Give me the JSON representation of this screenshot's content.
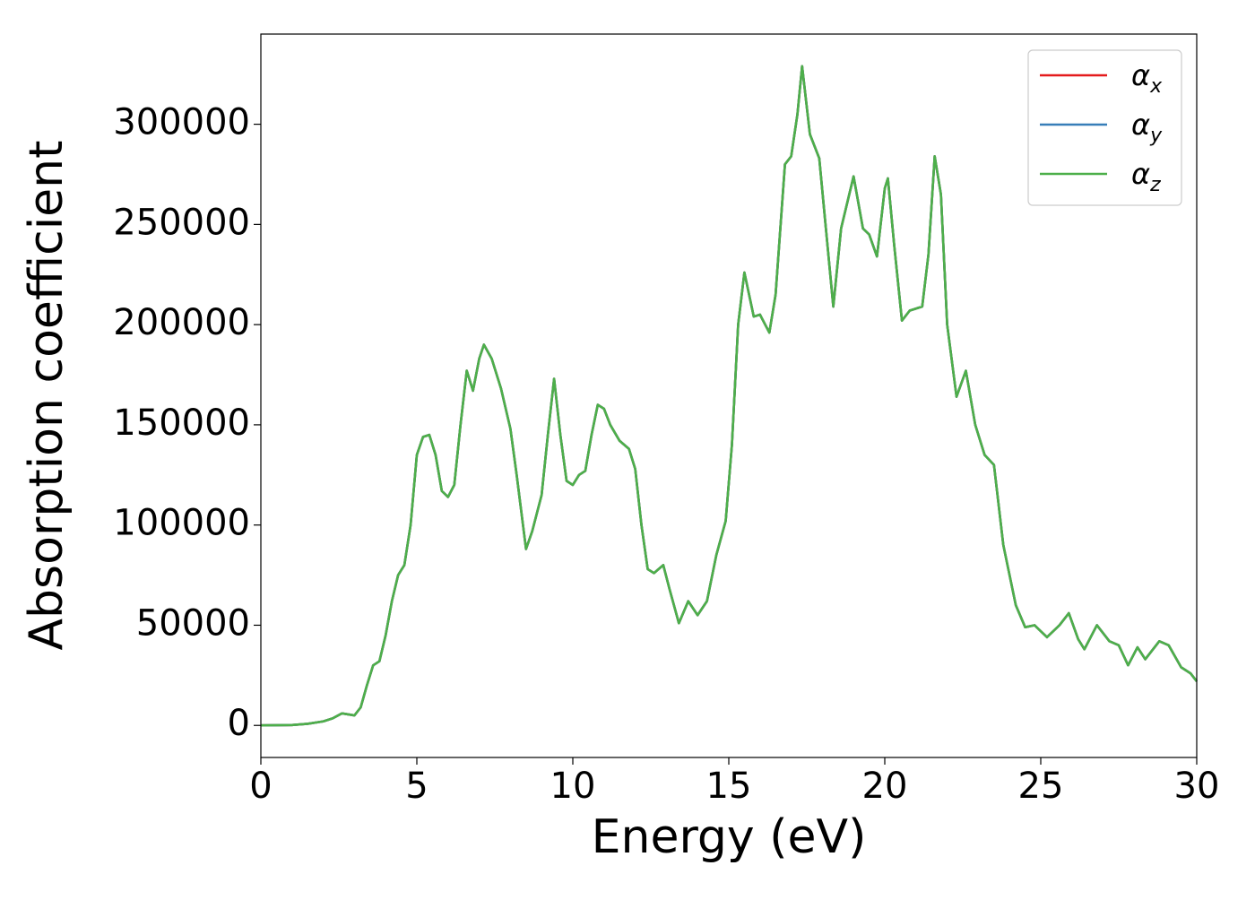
{
  "chart_data": {
    "type": "line",
    "xlabel": "Energy (eV)",
    "ylabel": "Absorption coefficient",
    "xlim": [
      0,
      30
    ],
    "xticks": [
      0,
      5,
      10,
      15,
      20,
      25,
      30
    ],
    "ylim": [
      -16000,
      345000
    ],
    "yticks": [
      0,
      50000,
      100000,
      150000,
      200000,
      250000,
      300000
    ],
    "legend": "upper right",
    "x": [
      0,
      1,
      1.5,
      2,
      2.3,
      2.6,
      2.8,
      3.0,
      3.2,
      3.4,
      3.6,
      3.8,
      4.0,
      4.2,
      4.4,
      4.6,
      4.8,
      5.0,
      5.2,
      5.4,
      5.6,
      5.8,
      6.0,
      6.2,
      6.4,
      6.6,
      6.8,
      7.0,
      7.15,
      7.4,
      7.7,
      8.0,
      8.2,
      8.5,
      8.7,
      9.0,
      9.2,
      9.4,
      9.6,
      9.8,
      10.0,
      10.2,
      10.4,
      10.6,
      10.8,
      11.0,
      11.2,
      11.5,
      11.8,
      12.0,
      12.2,
      12.4,
      12.6,
      12.9,
      13.1,
      13.4,
      13.7,
      14.0,
      14.3,
      14.6,
      14.9,
      15.1,
      15.3,
      15.5,
      15.8,
      16.0,
      16.3,
      16.5,
      16.8,
      17.0,
      17.2,
      17.35,
      17.6,
      17.9,
      18.1,
      18.35,
      18.6,
      19.0,
      19.3,
      19.5,
      19.75,
      20.0,
      20.1,
      20.3,
      20.55,
      20.8,
      21.2,
      21.4,
      21.6,
      21.8,
      22.0,
      22.3,
      22.6,
      22.9,
      23.2,
      23.5,
      23.8,
      24.2,
      24.5,
      24.8,
      25.2,
      25.6,
      25.9,
      26.2,
      26.4,
      26.8,
      27.2,
      27.5,
      27.8,
      28.1,
      28.35,
      28.8,
      29.1,
      29.5,
      29.8,
      30
    ],
    "series": [
      {
        "name": "αx",
        "color": "#e41a1c",
        "values": [
          0,
          200,
          800,
          2000,
          3500,
          6000,
          5500,
          5000,
          9000,
          20000,
          30000,
          32000,
          45000,
          62000,
          75000,
          80000,
          100000,
          135000,
          144000,
          145000,
          135000,
          117000,
          114000,
          120000,
          150000,
          177000,
          167000,
          183000,
          190000,
          183000,
          168000,
          148000,
          125000,
          88000,
          97000,
          115000,
          145000,
          173000,
          145000,
          122000,
          120000,
          125000,
          127000,
          145000,
          160000,
          158000,
          150000,
          142000,
          138000,
          128000,
          100000,
          78000,
          76000,
          80000,
          68000,
          51000,
          62000,
          55000,
          62000,
          85000,
          102000,
          140000,
          200000,
          226000,
          204000,
          205000,
          196000,
          215000,
          280000,
          284000,
          305000,
          329000,
          295000,
          283000,
          250000,
          209000,
          248000,
          274000,
          248000,
          245000,
          234000,
          268000,
          273000,
          240000,
          202000,
          207000,
          209000,
          235000,
          284000,
          265000,
          200000,
          164000,
          177000,
          150000,
          135000,
          130000,
          90000,
          60000,
          49000,
          50000,
          44000,
          50000,
          56000,
          43000,
          38000,
          50000,
          42000,
          40000,
          30000,
          39000,
          33000,
          42000,
          40000,
          29000,
          26000,
          22000
        ]
      },
      {
        "name": "αy",
        "color": "#377eb8",
        "values": [
          0,
          200,
          800,
          2000,
          3500,
          6000,
          5500,
          5000,
          9000,
          20000,
          30000,
          32000,
          45000,
          62000,
          75000,
          80000,
          100000,
          135000,
          144000,
          145000,
          135000,
          117000,
          114000,
          120000,
          150000,
          177000,
          167000,
          183000,
          190000,
          183000,
          168000,
          148000,
          125000,
          88000,
          97000,
          115000,
          145000,
          173000,
          145000,
          122000,
          120000,
          125000,
          127000,
          145000,
          160000,
          158000,
          150000,
          142000,
          138000,
          128000,
          100000,
          78000,
          76000,
          80000,
          68000,
          51000,
          62000,
          55000,
          62000,
          85000,
          102000,
          140000,
          200000,
          226000,
          204000,
          205000,
          196000,
          215000,
          280000,
          284000,
          305000,
          329000,
          295000,
          283000,
          250000,
          209000,
          248000,
          274000,
          248000,
          245000,
          234000,
          268000,
          273000,
          240000,
          202000,
          207000,
          209000,
          235000,
          284000,
          265000,
          200000,
          164000,
          177000,
          150000,
          135000,
          130000,
          90000,
          60000,
          49000,
          50000,
          44000,
          50000,
          56000,
          43000,
          38000,
          50000,
          42000,
          40000,
          30000,
          39000,
          33000,
          42000,
          40000,
          29000,
          26000,
          22000
        ]
      },
      {
        "name": "αz",
        "color": "#4daf4a",
        "values": [
          0,
          200,
          800,
          2000,
          3500,
          6000,
          5500,
          5000,
          9000,
          20000,
          30000,
          32000,
          45000,
          62000,
          75000,
          80000,
          100000,
          135000,
          144000,
          145000,
          135000,
          117000,
          114000,
          120000,
          150000,
          177000,
          167000,
          183000,
          190000,
          183000,
          168000,
          148000,
          125000,
          88000,
          97000,
          115000,
          145000,
          173000,
          145000,
          122000,
          120000,
          125000,
          127000,
          145000,
          160000,
          158000,
          150000,
          142000,
          138000,
          128000,
          100000,
          78000,
          76000,
          80000,
          68000,
          51000,
          62000,
          55000,
          62000,
          85000,
          102000,
          140000,
          200000,
          226000,
          204000,
          205000,
          196000,
          215000,
          280000,
          284000,
          305000,
          329000,
          295000,
          283000,
          250000,
          209000,
          248000,
          274000,
          248000,
          245000,
          234000,
          268000,
          273000,
          240000,
          202000,
          207000,
          209000,
          235000,
          284000,
          265000,
          200000,
          164000,
          177000,
          150000,
          135000,
          130000,
          90000,
          60000,
          49000,
          50000,
          44000,
          50000,
          56000,
          43000,
          38000,
          50000,
          42000,
          40000,
          30000,
          39000,
          33000,
          42000,
          40000,
          29000,
          26000,
          22000
        ]
      }
    ]
  }
}
